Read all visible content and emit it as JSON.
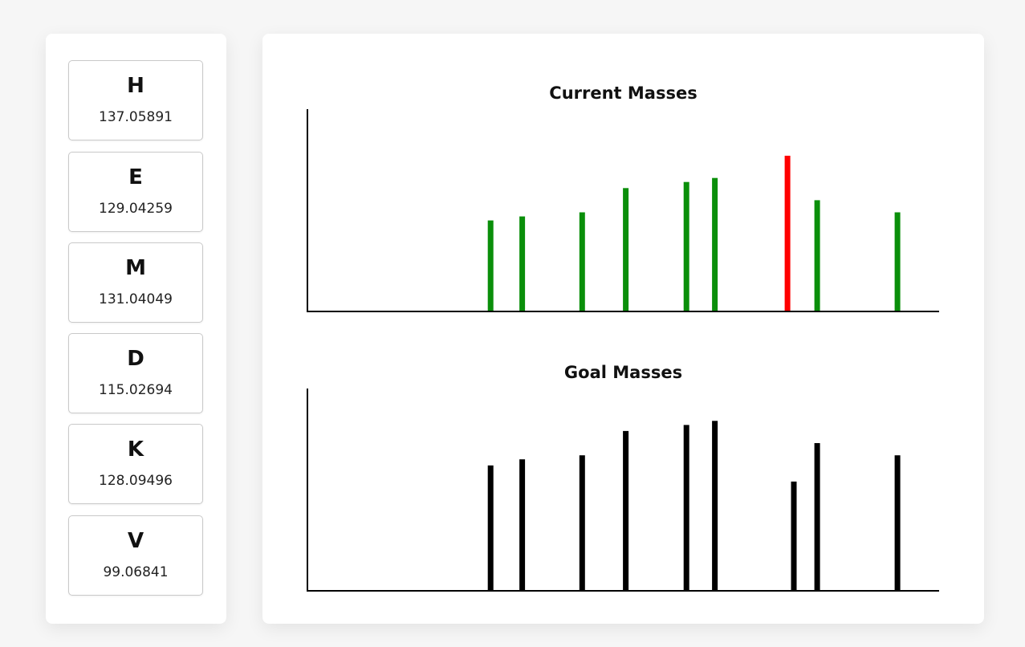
{
  "residues": [
    {
      "symbol": "H",
      "mass": "137.05891"
    },
    {
      "symbol": "E",
      "mass": "129.04259"
    },
    {
      "symbol": "M",
      "mass": "131.04049"
    },
    {
      "symbol": "D",
      "mass": "115.02694"
    },
    {
      "symbol": "K",
      "mass": "128.09496"
    },
    {
      "symbol": "V",
      "mass": "99.06841"
    }
  ],
  "colors": {
    "match": "#0a8f0a",
    "mismatch": "#ff0000",
    "goal": "#000000",
    "axis": "#000000"
  },
  "chart_data": [
    {
      "type": "bar",
      "title": "Current Masses",
      "xlabel": "",
      "ylabel": "",
      "xlim": [
        0,
        100
      ],
      "ylim": [
        0,
        100
      ],
      "grid": false,
      "bars": [
        {
          "x": 29.0,
          "value": 45,
          "status": "match"
        },
        {
          "x": 34.0,
          "value": 47,
          "status": "match"
        },
        {
          "x": 43.5,
          "value": 49,
          "status": "match"
        },
        {
          "x": 50.4,
          "value": 61,
          "status": "match"
        },
        {
          "x": 60.0,
          "value": 64,
          "status": "match"
        },
        {
          "x": 64.5,
          "value": 66,
          "status": "match"
        },
        {
          "x": 76.0,
          "value": 77,
          "status": "mismatch"
        },
        {
          "x": 80.7,
          "value": 55,
          "status": "match"
        },
        {
          "x": 93.4,
          "value": 49,
          "status": "match"
        }
      ]
    },
    {
      "type": "bar",
      "title": "Goal Masses",
      "xlabel": "",
      "ylabel": "",
      "xlim": [
        0,
        100
      ],
      "ylim": [
        0,
        100
      ],
      "grid": false,
      "bars": [
        {
          "x": 29.0,
          "value": 62
        },
        {
          "x": 34.0,
          "value": 65
        },
        {
          "x": 43.5,
          "value": 67
        },
        {
          "x": 50.4,
          "value": 79
        },
        {
          "x": 60.0,
          "value": 82
        },
        {
          "x": 64.5,
          "value": 84
        },
        {
          "x": 77.0,
          "value": 54
        },
        {
          "x": 80.7,
          "value": 73
        },
        {
          "x": 93.4,
          "value": 67
        }
      ]
    }
  ]
}
